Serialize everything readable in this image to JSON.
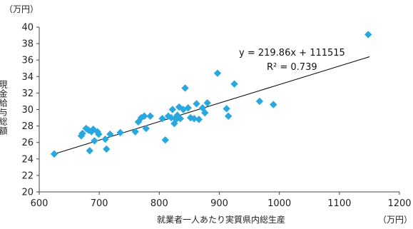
{
  "chart_data": {
    "type": "scatter",
    "xlabel": "就業者一人あたり実質県内総生産",
    "ylabel": "現金給与総額",
    "x_unit": "（万円）",
    "y_unit": "（万円）",
    "xlim": [
      600,
      1200
    ],
    "ylim": [
      20,
      40
    ],
    "x_ticks": [
      600,
      700,
      800,
      900,
      1000,
      1100,
      1200
    ],
    "y_ticks": [
      20,
      22,
      24,
      26,
      28,
      30,
      32,
      34,
      36,
      38,
      40
    ],
    "grid": false,
    "marker_color": "#29a8e0",
    "trendline": {
      "equation": "y = 219.86x + 111515",
      "r_squared": "R² = 0.739",
      "from": [
        625,
        24.6
      ],
      "to": [
        1150,
        36.4
      ]
    },
    "points": [
      [
        625,
        24.6
      ],
      [
        670,
        26.8
      ],
      [
        672,
        27.1
      ],
      [
        678,
        27.7
      ],
      [
        682,
        27.5
      ],
      [
        684,
        25.0
      ],
      [
        687,
        27.3
      ],
      [
        690,
        27.6
      ],
      [
        692,
        26.2
      ],
      [
        697,
        27.3
      ],
      [
        699,
        27.0
      ],
      [
        710,
        26.4
      ],
      [
        712,
        25.2
      ],
      [
        718,
        27.0
      ],
      [
        735,
        27.2
      ],
      [
        760,
        27.3
      ],
      [
        765,
        28.5
      ],
      [
        770,
        29.0
      ],
      [
        775,
        29.2
      ],
      [
        778,
        27.7
      ],
      [
        785,
        29.2
      ],
      [
        805,
        28.9
      ],
      [
        810,
        26.3
      ],
      [
        815,
        29.2
      ],
      [
        820,
        29.0
      ],
      [
        822,
        30.0
      ],
      [
        825,
        28.3
      ],
      [
        828,
        28.8
      ],
      [
        830,
        29.3
      ],
      [
        833,
        30.3
      ],
      [
        835,
        28.9
      ],
      [
        840,
        30.0
      ],
      [
        843,
        32.6
      ],
      [
        848,
        30.2
      ],
      [
        852,
        29.0
      ],
      [
        858,
        28.9
      ],
      [
        862,
        30.7
      ],
      [
        866,
        28.8
      ],
      [
        872,
        30.2
      ],
      [
        876,
        29.6
      ],
      [
        880,
        30.8
      ],
      [
        897,
        34.4
      ],
      [
        912,
        30.1
      ],
      [
        915,
        29.2
      ],
      [
        925,
        33.1
      ],
      [
        967,
        31.0
      ],
      [
        990,
        30.6
      ],
      [
        1148,
        39.1
      ]
    ]
  }
}
